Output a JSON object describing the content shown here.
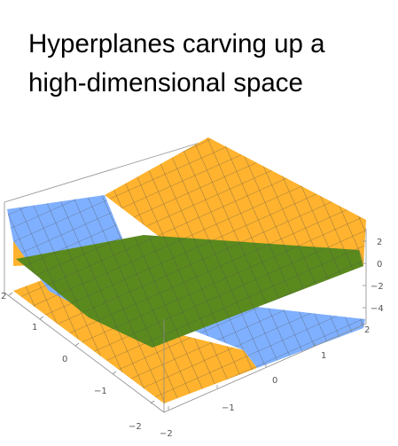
{
  "slide": {
    "title_lines": [
      "Hyperplanes carving up a",
      "high-dimensional space"
    ]
  },
  "plot": {
    "type": "3d-surface",
    "x_ticks": [
      "2",
      "1",
      "0",
      "−1",
      "−2"
    ],
    "y_ticks": [
      "−2",
      "−1",
      "0",
      "1",
      "2"
    ],
    "z_ticks": [
      "2",
      "0",
      "−2",
      "−4"
    ],
    "surfaces": [
      {
        "color_name": "blue",
        "color": "#7fb0ff"
      },
      {
        "color_name": "orange",
        "color": "#ffb32e"
      },
      {
        "color_name": "green",
        "color": "#5a8a1e"
      }
    ],
    "mesh_color": "#4d4d4d",
    "box_color": "#8c8c8c"
  }
}
